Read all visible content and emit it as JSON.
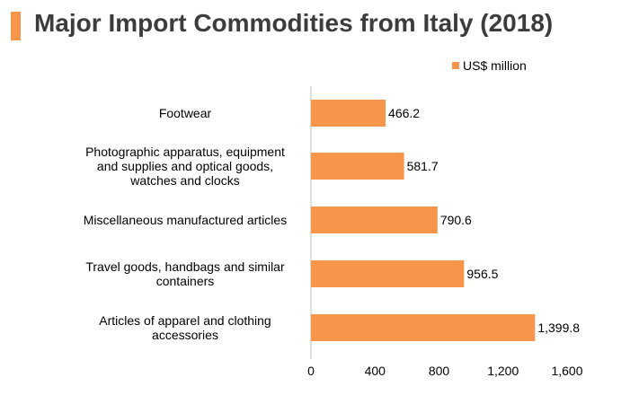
{
  "title": "Major Import Commodities from Italy (2018)",
  "colors": {
    "accent": "#F7964A",
    "bar": "#F7964A",
    "axis": "#BFBFBF"
  },
  "chart_data": {
    "type": "bar",
    "orientation": "horizontal",
    "categories": [
      "Footwear",
      "Photographic apparatus, equipment and supplies and optical goods, watches and clocks",
      "Miscellaneous manufactured articles",
      "Travel goods, handbags and similar containers",
      "Articles of apparel and clothing accessories"
    ],
    "category_lines": [
      [
        "Footwear"
      ],
      [
        "Photographic apparatus, equipment",
        "and supplies and optical goods,",
        "watches and clocks"
      ],
      [
        "Miscellaneous manufactured articles"
      ],
      [
        "Travel goods, handbags and similar",
        "containers"
      ],
      [
        "Articles of apparel and clothing",
        "accessories"
      ]
    ],
    "series": [
      {
        "name": "US$ million",
        "values": [
          466.2,
          581.7,
          790.6,
          956.5,
          1399.8
        ],
        "labels": [
          "466.2",
          "581.7",
          "790.6",
          "956.5",
          "1,399.8"
        ]
      }
    ],
    "xlim": [
      0,
      1600
    ],
    "xticks": [
      0,
      400,
      800,
      1200,
      1600
    ],
    "xtick_labels": [
      "0",
      "400",
      "800",
      "1,200",
      "1,600"
    ],
    "legend": "top-right",
    "grid": false
  }
}
